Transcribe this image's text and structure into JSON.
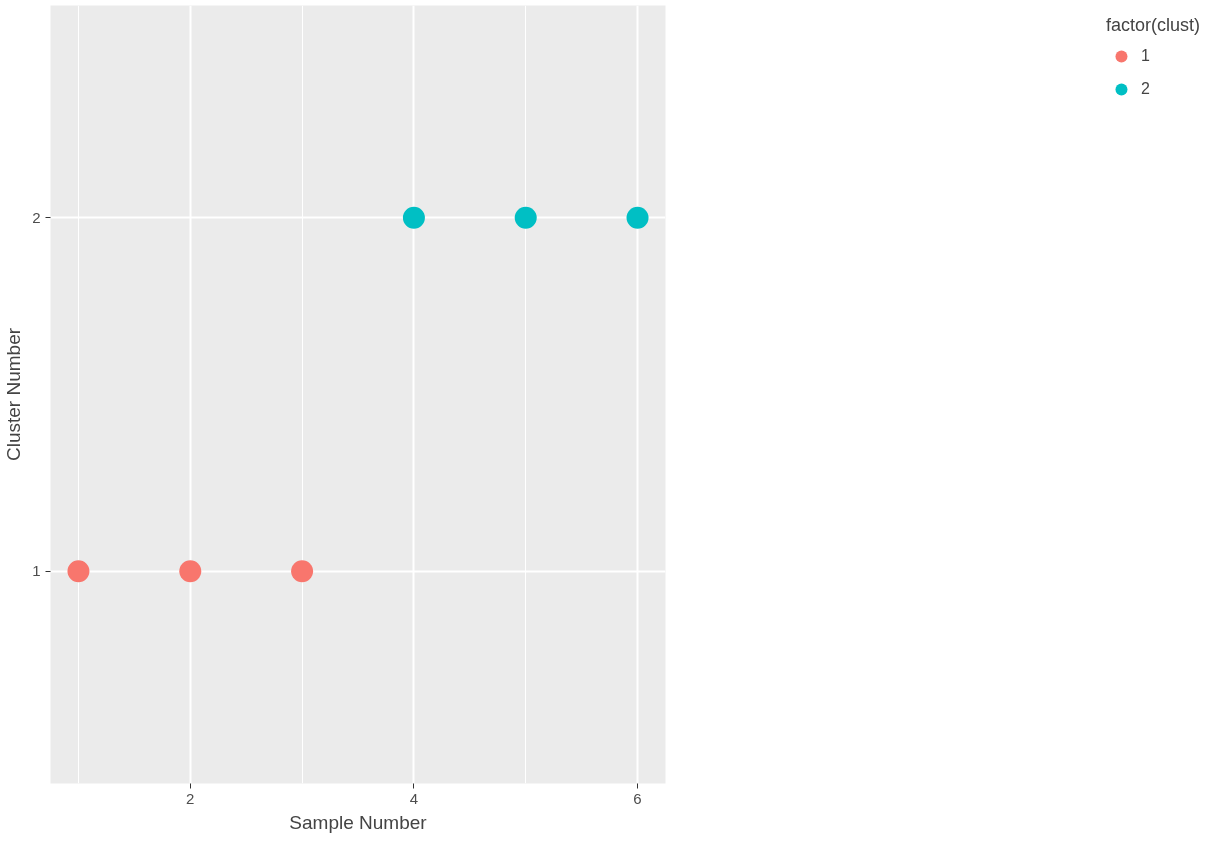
{
  "chart_data": {
    "type": "scatter",
    "xlabel": "Sample Number",
    "ylabel": "Cluster Number",
    "legend_title": "factor(clust)",
    "series": [
      {
        "name": "1",
        "color": "#f8766d",
        "x": [
          1,
          2,
          3
        ],
        "values": [
          1,
          1,
          1
        ]
      },
      {
        "name": "2",
        "color": "#00bfc4",
        "x": [
          4,
          5,
          6
        ],
        "values": [
          2,
          2,
          2
        ]
      }
    ],
    "xlim": [
      0.75,
      6.25
    ],
    "ylim": [
      0.4,
      2.6
    ],
    "xticks": [
      2,
      4,
      6
    ],
    "yticks": [
      1,
      2
    ],
    "grid": true,
    "legend": "right",
    "marker": "circle"
  }
}
